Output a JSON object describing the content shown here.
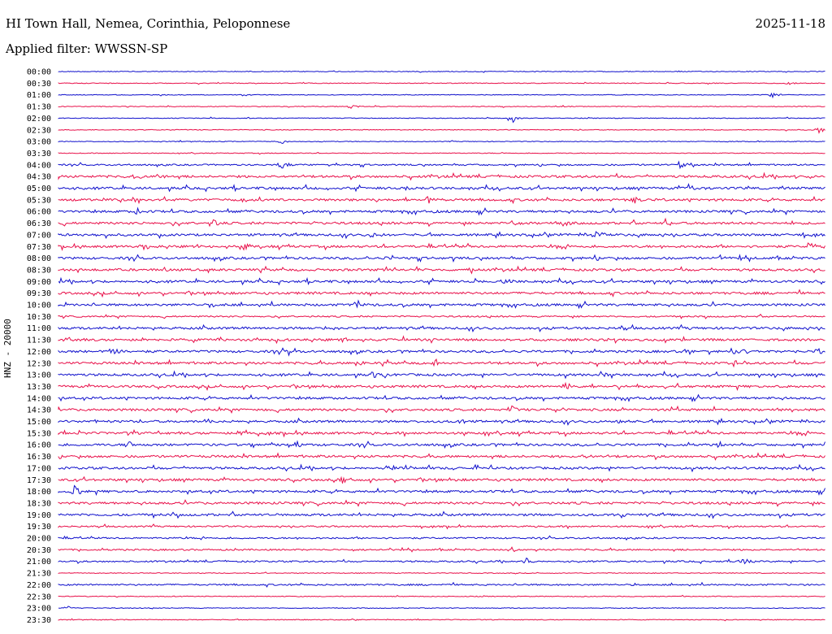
{
  "header": {
    "station": "HI Town Hall, Nemea, Corinthia, Peloponnese",
    "date": "2025-11-18",
    "filter": "Applied filter: WWSSN-SP"
  },
  "chart_data": {
    "type": "line",
    "title": "HI Town Hall, Nemea, Corinthia, Peloponnese",
    "ylabel": "HNZ - 20000",
    "colors": [
      "#1010cc",
      "#e8104a"
    ],
    "rows": [
      "00:00",
      "00:30",
      "01:00",
      "01:30",
      "02:00",
      "02:30",
      "03:00",
      "03:30",
      "04:00",
      "04:30",
      "05:00",
      "05:30",
      "06:00",
      "06:30",
      "07:00",
      "07:30",
      "08:00",
      "08:30",
      "09:00",
      "09:30",
      "10:00",
      "10:30",
      "11:00",
      "11:30",
      "12:00",
      "12:30",
      "13:00",
      "13:30",
      "14:00",
      "14:30",
      "15:00",
      "15:30",
      "16:00",
      "16:30",
      "17:00",
      "17:30",
      "18:00",
      "18:30",
      "19:00",
      "19:30",
      "20:00",
      "20:30",
      "21:00",
      "21:30",
      "22:00",
      "22:30",
      "23:00",
      "23:30"
    ],
    "noise_level": [
      1,
      1,
      1,
      1,
      1,
      1,
      1,
      1,
      2,
      3,
      3,
      3,
      3,
      3,
      3,
      3,
      3,
      3,
      3,
      3,
      3,
      2,
      3,
      3,
      3,
      3,
      3,
      3,
      3,
      3,
      3,
      3,
      3,
      3,
      3,
      3,
      3,
      3,
      3,
      2,
      2,
      2,
      2,
      1,
      2,
      1,
      1,
      1
    ],
    "events": [
      {
        "row": 1,
        "t": 0.95,
        "amp": 3
      },
      {
        "row": 2,
        "t": 0.93,
        "amp": 6
      },
      {
        "row": 3,
        "t": 0.38,
        "amp": 4
      },
      {
        "row": 4,
        "t": 0.59,
        "amp": 8
      },
      {
        "row": 5,
        "t": 0.99,
        "amp": 7
      },
      {
        "row": 6,
        "t": 0.29,
        "amp": 5
      },
      {
        "row": 8,
        "t": 0.29,
        "amp": 6
      },
      {
        "row": 8,
        "t": 0.81,
        "amp": 5
      },
      {
        "row": 9,
        "t": 0.1,
        "amp": 5
      },
      {
        "row": 9,
        "t": 0.13,
        "amp": 5
      },
      {
        "row": 9,
        "t": 0.98,
        "amp": 5
      },
      {
        "row": 10,
        "t": 0.82,
        "amp": 9
      },
      {
        "row": 10,
        "t": 0.45,
        "amp": 4
      },
      {
        "row": 11,
        "t": 0.1,
        "amp": 5
      },
      {
        "row": 11,
        "t": 0.48,
        "amp": 6
      },
      {
        "row": 11,
        "t": 0.75,
        "amp": 5
      },
      {
        "row": 12,
        "t": 0.1,
        "amp": 6
      },
      {
        "row": 13,
        "t": 0.2,
        "amp": 8
      },
      {
        "row": 13,
        "t": 0.59,
        "amp": 6
      },
      {
        "row": 13,
        "t": 0.66,
        "amp": 6
      },
      {
        "row": 13,
        "t": 0.79,
        "amp": 6
      },
      {
        "row": 14,
        "t": 0.41,
        "amp": 5
      },
      {
        "row": 14,
        "t": 0.7,
        "amp": 6
      },
      {
        "row": 15,
        "t": 0.11,
        "amp": 5
      },
      {
        "row": 15,
        "t": 0.24,
        "amp": 6
      },
      {
        "row": 15,
        "t": 0.98,
        "amp": 8
      },
      {
        "row": 16,
        "t": 0.43,
        "amp": 5
      },
      {
        "row": 16,
        "t": 0.86,
        "amp": 5
      },
      {
        "row": 17,
        "t": 0.53,
        "amp": 5
      },
      {
        "row": 18,
        "t": 0.58,
        "amp": 4
      },
      {
        "row": 20,
        "t": 0.2,
        "amp": 5
      },
      {
        "row": 20,
        "t": 0.39,
        "amp": 5
      },
      {
        "row": 22,
        "t": 0.35,
        "amp": 4
      },
      {
        "row": 23,
        "t": 0.01,
        "amp": 4
      },
      {
        "row": 23,
        "t": 0.37,
        "amp": 5
      },
      {
        "row": 24,
        "t": 0.07,
        "amp": 7
      },
      {
        "row": 24,
        "t": 0.3,
        "amp": 5
      },
      {
        "row": 24,
        "t": 0.82,
        "amp": 6
      },
      {
        "row": 24,
        "t": 0.89,
        "amp": 6
      },
      {
        "row": 24,
        "t": 0.99,
        "amp": 5
      },
      {
        "row": 25,
        "t": 0.39,
        "amp": 6
      },
      {
        "row": 25,
        "t": 0.49,
        "amp": 6
      },
      {
        "row": 25,
        "t": 0.88,
        "amp": 5
      },
      {
        "row": 26,
        "t": 0.41,
        "amp": 5
      },
      {
        "row": 26,
        "t": 0.71,
        "amp": 7
      },
      {
        "row": 27,
        "t": 0.66,
        "amp": 6
      },
      {
        "row": 29,
        "t": 0.59,
        "amp": 5
      },
      {
        "row": 30,
        "t": 0.19,
        "amp": 5
      },
      {
        "row": 30,
        "t": 0.52,
        "amp": 5
      },
      {
        "row": 30,
        "t": 0.73,
        "amp": 4
      },
      {
        "row": 31,
        "t": 0.24,
        "amp": 5
      },
      {
        "row": 32,
        "t": 0.09,
        "amp": 6
      },
      {
        "row": 32,
        "t": 0.31,
        "amp": 5
      },
      {
        "row": 32,
        "t": 0.86,
        "amp": 5
      },
      {
        "row": 33,
        "t": 0.68,
        "amp": 4
      },
      {
        "row": 34,
        "t": 0.43,
        "amp": 5
      },
      {
        "row": 35,
        "t": 0.37,
        "amp": 6
      },
      {
        "row": 36,
        "t": 0.02,
        "amp": 8
      },
      {
        "row": 38,
        "t": 0.73,
        "amp": 5
      },
      {
        "row": 41,
        "t": 0.59,
        "amp": 4
      },
      {
        "row": 42,
        "t": 0.61,
        "amp": 8
      },
      {
        "row": 42,
        "t": 0.89,
        "amp": 6
      },
      {
        "row": 46,
        "t": 0.01,
        "amp": 3
      }
    ]
  }
}
